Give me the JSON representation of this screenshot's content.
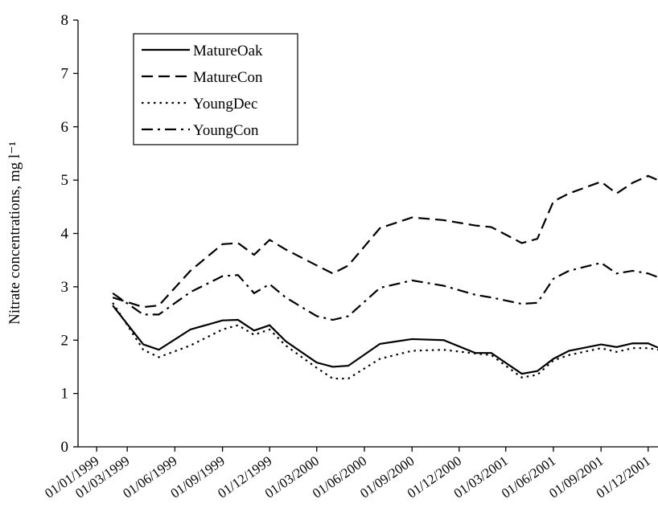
{
  "chart_data": {
    "type": "line",
    "y_label": "Nitrate concentrations, mg l⁻¹",
    "x": [
      "1999-02-01",
      "1999-04-01",
      "1999-05-01",
      "1999-07-01",
      "1999-09-01",
      "1999-10-01",
      "1999-11-01",
      "1999-12-01",
      "2000-01-01",
      "2000-03-01",
      "2000-04-01",
      "2000-05-01",
      "2000-07-01",
      "2000-09-01",
      "2000-11-01",
      "2001-01-01",
      "2001-02-01",
      "2001-04-01",
      "2001-05-01",
      "2001-06-01",
      "2001-07-01",
      "2001-09-01",
      "2001-10-01",
      "2001-11-01",
      "2001-12-01",
      "2001-12-20"
    ],
    "series": [
      {
        "name": "MatureOak",
        "color": "#000000",
        "style": "solid",
        "values": [
          2.65,
          1.92,
          1.82,
          2.2,
          2.37,
          2.38,
          2.18,
          2.28,
          1.98,
          1.58,
          1.5,
          1.52,
          1.93,
          2.02,
          2.0,
          1.76,
          1.76,
          1.37,
          1.42,
          1.65,
          1.8,
          1.92,
          1.87,
          1.94,
          1.94,
          1.86
        ]
      },
      {
        "name": "MatureCon",
        "color": "#000000",
        "style": "dashed",
        "values": [
          2.8,
          2.62,
          2.65,
          3.3,
          3.8,
          3.82,
          3.6,
          3.88,
          3.7,
          3.4,
          3.25,
          3.4,
          4.1,
          4.3,
          4.25,
          4.15,
          4.12,
          3.82,
          3.9,
          4.6,
          4.75,
          4.97,
          4.75,
          4.95,
          5.08,
          5.0
        ]
      },
      {
        "name": "YoungDec",
        "color": "#000000",
        "style": "dotted",
        "values": [
          2.7,
          1.82,
          1.68,
          1.9,
          2.2,
          2.28,
          2.1,
          2.2,
          1.9,
          1.48,
          1.28,
          1.28,
          1.65,
          1.8,
          1.82,
          1.75,
          1.72,
          1.3,
          1.35,
          1.62,
          1.72,
          1.85,
          1.78,
          1.85,
          1.85,
          1.82
        ]
      },
      {
        "name": "YoungCon",
        "color": "#000000",
        "style": "dashdot",
        "values": [
          2.88,
          2.48,
          2.48,
          2.9,
          3.2,
          3.22,
          2.88,
          3.05,
          2.8,
          2.45,
          2.38,
          2.45,
          2.98,
          3.12,
          3.02,
          2.85,
          2.8,
          2.68,
          2.7,
          3.15,
          3.3,
          3.45,
          3.25,
          3.3,
          3.25,
          3.18
        ]
      }
    ],
    "xlim": [
      "1998-11-26",
      "2001-12-20"
    ],
    "xticks": [
      {
        "value": "1999-01-01",
        "label": "01/01/1999"
      },
      {
        "value": "1999-03-01",
        "label": "01/03/1999"
      },
      {
        "value": "1999-06-01",
        "label": "01/06/1999"
      },
      {
        "value": "1999-09-01",
        "label": "01/09/1999"
      },
      {
        "value": "1999-12-01",
        "label": "01/12/1999"
      },
      {
        "value": "2000-03-01",
        "label": "01/03/2000"
      },
      {
        "value": "2000-06-01",
        "label": "01/06/2000"
      },
      {
        "value": "2000-09-01",
        "label": "01/09/2000"
      },
      {
        "value": "2000-12-01",
        "label": "01/12/2000"
      },
      {
        "value": "2001-03-01",
        "label": "01/03/2001"
      },
      {
        "value": "2001-06-01",
        "label": "01/06/2001"
      },
      {
        "value": "2001-09-01",
        "label": "01/09/2001"
      },
      {
        "value": "2001-12-01",
        "label": "01/12/2001"
      }
    ],
    "ylim": [
      0,
      8
    ],
    "yticks": [
      0,
      1,
      2,
      3,
      4,
      5,
      6,
      7,
      8
    ],
    "grid": false,
    "legend": "upper left"
  }
}
